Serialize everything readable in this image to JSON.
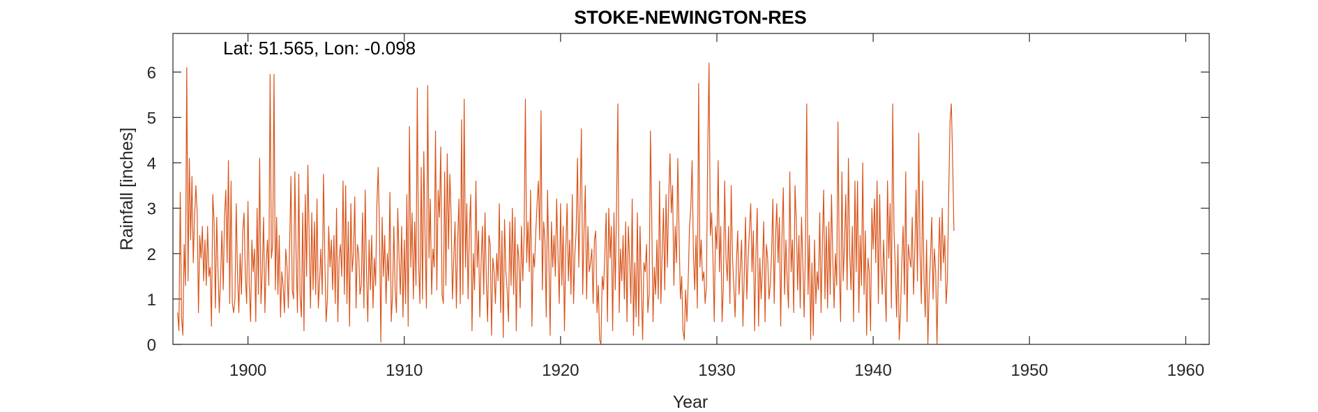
{
  "chart_data": {
    "type": "line",
    "title": "STOKE-NEWINGTON-RES",
    "annotation": "Lat: 51.565, Lon: -0.098",
    "xlabel": "Year",
    "ylabel": "Rainfall [inches]",
    "xlim": [
      1895.2,
      1961.5
    ],
    "ylim": [
      0,
      6.85
    ],
    "xticks": [
      1900,
      1910,
      1920,
      1930,
      1940,
      1950,
      1960
    ],
    "yticks": [
      0,
      1,
      2,
      3,
      4,
      5,
      6
    ],
    "grid": false,
    "line_color": "#D95319",
    "series": [
      {
        "x_start": 1895.5,
        "x_step": 0.083333,
        "values": [
          0.7,
          0.3,
          3.35,
          0.6,
          0.2,
          2.2,
          1.3,
          6.1,
          1.4,
          4.1,
          2.3,
          3.7,
          1.8,
          2.8,
          3.5,
          2.9,
          0.7,
          2.4,
          1.9,
          2.6,
          1.4,
          2.3,
          1.3,
          2.6,
          1.5,
          1.7,
          0.4,
          3.3,
          2.7,
          0.8,
          2.8,
          1.6,
          0.7,
          1.5,
          2.5,
          1.2,
          2.8,
          3.4,
          1.8,
          4.05,
          0.9,
          3.6,
          0.9,
          0.7,
          1.0,
          3.1,
          1.5,
          0.7,
          2.0,
          1.1,
          2.5,
          2.9,
          1.5,
          0.9,
          3.15,
          1.3,
          0.5,
          2.3,
          1.6,
          2.1,
          0.5,
          3.0,
          1.1,
          4.1,
          0.9,
          1.6,
          2.8,
          0.7,
          1.8,
          2.3,
          1.3,
          5.95,
          1.9,
          2.2,
          5.95,
          1.2,
          2.8,
          1.1,
          2.4,
          0.6,
          1.6,
          1.3,
          0.7,
          2.1,
          1.7,
          0.8,
          2.2,
          3.7,
          1.2,
          1.0,
          3.8,
          1.9,
          0.7,
          3.75,
          1.1,
          0.6,
          2.9,
          0.3,
          3.3,
          1.5,
          3.95,
          2.3,
          0.8,
          2.9,
          1.2,
          2.7,
          1.1,
          3.2,
          0.8,
          1.4,
          2.1,
          1.1,
          3.75,
          1.9,
          0.5,
          1.0,
          2.6,
          1.7,
          2.3,
          1.2,
          2.4,
          0.9,
          3.0,
          0.5,
          1.9,
          2.2,
          1.5,
          3.6,
          1.1,
          3.5,
          0.9,
          2.7,
          0.4,
          3.1,
          1.6,
          2.0,
          3.25,
          0.8,
          2.2,
          2.0,
          1.1,
          1.3,
          2.9,
          0.8,
          3.4,
          1.6,
          0.5,
          2.3,
          1.2,
          2.4,
          0.8,
          1.9,
          1.3,
          3.1,
          3.9,
          2.5,
          0.05,
          2.8,
          1.5,
          2.4,
          0.9,
          2.0,
          1.4,
          3.35,
          0.5,
          1.1,
          2.6,
          1.2,
          0.7,
          3.0,
          1.9,
          1.1,
          2.6,
          0.6,
          2.3,
          0.9,
          3.3,
          0.4,
          4.8,
          1.7,
          2.9,
          1.0,
          2.7,
          1.3,
          5.65,
          1.8,
          0.9,
          3.9,
          1.0,
          4.25,
          2.3,
          0.8,
          5.7,
          1.9,
          3.2,
          1.1,
          2.1,
          1.7,
          4.7,
          1.2,
          3.4,
          2.8,
          4.35,
          1.1,
          0.9,
          3.8,
          1.3,
          4.2,
          2.1,
          3.75,
          2.8,
          1.0,
          1.9,
          2.7,
          0.8,
          2.3,
          3.2,
          0.9,
          4.95,
          1.1,
          5.4,
          1.7,
          3.1,
          1.0,
          2.5,
          3.3,
          0.3,
          2.0,
          1.2,
          3.6,
          1.7,
          2.5,
          0.6,
          1.8,
          2.6,
          1.1,
          2.9,
          1.4,
          0.5,
          2.4,
          2.2,
          0.2,
          1.9,
          1.6,
          0.9,
          2.0,
          1.4,
          3.1,
          0.7,
          2.5,
          0.15,
          2.75,
          1.6,
          1.2,
          0.5,
          2.7,
          1.3,
          3.0,
          1.1,
          2.8,
          0.3,
          2.2,
          1.9,
          0.8,
          2.6,
          1.4,
          2.4,
          5.4,
          1.8,
          2.7,
          1.6,
          3.4,
          0.4,
          2.0,
          1.7,
          2.5,
          3.1,
          3.6,
          2.3,
          5.15,
          1.2,
          2.7,
          2.3,
          0.6,
          3.4,
          1.9,
          0.2,
          2.7,
          1.7,
          2.4,
          1.5,
          3.2,
          2.0,
          0.9,
          3.1,
          1.3,
          2.6,
          0.3,
          2.1,
          3.1,
          1.4,
          2.3,
          1.1,
          3.3,
          0.9,
          2.0,
          2.5,
          4.1,
          1.7,
          3.1,
          4.75,
          1.1,
          2.5,
          3.5,
          1.0,
          2.6,
          1.6,
          1.8,
          2.1,
          0.9,
          2.3,
          2.5,
          0.7,
          1.3,
          0.1,
          0.0,
          1.5,
          1.2,
          2.0,
          2.9,
          0.5,
          3.0,
          1.9,
          2.6,
          0.3,
          2.9,
          1.2,
          3.1,
          5.3,
          0.7,
          2.1,
          1.4,
          2.4,
          1.0,
          2.7,
          0.5,
          2.6,
          1.9,
          0.9,
          3.2,
          0.2,
          1.8,
          0.6,
          2.9,
          0.4,
          2.6,
          1.3,
          0.1,
          1.8,
          1.6,
          2.2,
          0.7,
          1.1,
          4.7,
          2.8,
          0.5,
          1.7,
          1.1,
          2.3,
          1.0,
          3.6,
          0.9,
          2.0,
          3.0,
          1.2,
          3.3,
          1.7,
          3.2,
          4.2,
          2.9,
          3.5,
          1.3,
          2.6,
          1.8,
          4.1,
          2.4,
          1.0,
          1.5,
          0.3,
          0.1,
          1.2,
          0.5,
          1.4,
          2.6,
          3.0,
          4.05,
          2.0,
          1.2,
          2.4,
          0.8,
          5.75,
          1.7,
          2.3,
          1.4,
          1.6,
          0.9,
          1.3,
          4.3,
          6.2,
          2.4,
          2.9,
          1.9,
          0.5,
          2.6,
          2.1,
          4.05,
          1.6,
          2.6,
          0.5,
          1.3,
          3.6,
          1.9,
          1.4,
          2.6,
          0.9,
          3.5,
          1.9,
          1.3,
          0.6,
          1.8,
          2.5,
          1.1,
          1.7,
          2.3,
          0.4,
          1.5,
          2.8,
          1.0,
          1.9,
          2.5,
          3.1,
          1.6,
          2.5,
          0.3,
          2.0,
          3.0,
          0.4,
          1.9,
          1.0,
          1.7,
          2.7,
          0.5,
          2.2,
          1.9,
          1.0,
          1.3,
          2.0,
          3.2,
          0.9,
          2.3,
          3.1,
          1.8,
          2.8,
          0.4,
          2.4,
          3.45,
          1.1,
          2.3,
          1.4,
          0.8,
          3.8,
          1.6,
          2.3,
          0.7,
          3.5,
          2.7,
          1.2,
          2.4,
          0.8,
          2.8,
          1.8,
          0.6,
          2.1,
          5.3,
          1.1,
          2.4,
          0.1,
          1.8,
          0.2,
          2.3,
          0.9,
          1.6,
          1.2,
          2.9,
          0.7,
          2.2,
          3.4,
          1.0,
          2.6,
          0.8,
          2.7,
          1.1,
          3.3,
          1.9,
          0.8,
          2.0,
          1.3,
          4.9,
          1.7,
          0.5,
          3.8,
          1.4,
          2.2,
          3.3,
          1.2,
          4.1,
          2.0,
          1.2,
          2.6,
          0.5,
          3.6,
          1.6,
          3.6,
          0.7,
          2.4,
          1.3,
          4.0,
          1.1,
          2.5,
          0.2,
          1.9,
          1.6,
          0.3,
          3.0,
          2.1,
          3.2,
          1.8,
          3.6,
          0.9,
          3.3,
          1.7,
          1.1,
          2.3,
          1.4,
          0.5,
          3.6,
          1.9,
          3.1,
          0.8,
          5.3,
          2.5,
          1.7,
          0.6,
          2.2,
          0.1,
          0.7,
          1.8,
          2.6,
          1.1,
          3.8,
          0.5,
          2.2,
          1.9,
          1.7,
          2.8,
          1.1,
          2.1,
          3.4,
          1.4,
          4.65,
          2.0,
          0.9,
          3.6,
          1.5,
          0.6,
          2.3,
          0.0,
          1.2,
          1.9,
          2.8,
          1.0,
          2.1,
          1.6,
          0.0,
          1.6,
          2.8,
          1.4,
          3.0,
          1.8,
          2.4,
          0.9,
          1.4,
          3.3,
          4.9,
          5.3,
          4.1,
          2.5
        ]
      }
    ]
  }
}
